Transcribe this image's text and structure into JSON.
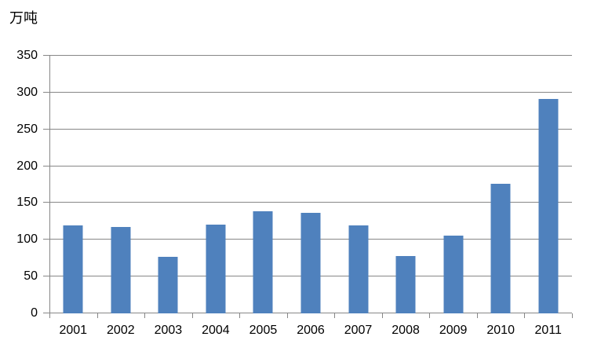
{
  "chart_data": {
    "type": "bar",
    "title": "",
    "unit_label": "万吨",
    "xlabel": "",
    "ylabel": "万吨",
    "categories": [
      "2001",
      "2002",
      "2003",
      "2004",
      "2005",
      "2006",
      "2007",
      "2008",
      "2009",
      "2010",
      "2011"
    ],
    "values": [
      120,
      117,
      77,
      121,
      139,
      137,
      119,
      78,
      106,
      176,
      291
    ],
    "ylim": [
      0,
      350
    ],
    "ytick_step": 50,
    "yticks": [
      0,
      50,
      100,
      150,
      200,
      250,
      300,
      350
    ],
    "grid": true,
    "legend": "none",
    "colors": {
      "bar": "#4F81BD",
      "gridline": "#878787",
      "axis": "#878787",
      "text": "#000000",
      "background": "#FFFFFF"
    }
  }
}
